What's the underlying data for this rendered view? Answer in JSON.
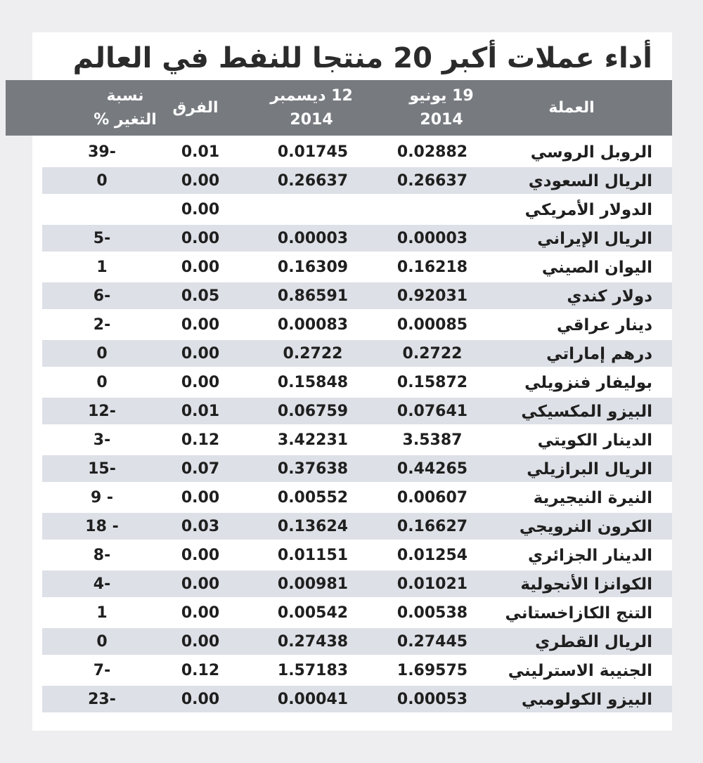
{
  "title": "أداء عملات أكبر 20 منتجا للنفط في العالم",
  "header": {
    "currency": "العملة",
    "june_line1": "19 يونيو",
    "june_line2": "2014",
    "dec_line1": "12 ديسمبر",
    "dec_line2": "2014",
    "diff": "الفرق",
    "pct_line1": "نسبة",
    "pct_line2": "التغير %"
  },
  "rows": [
    {
      "name": "الروبل الروسي",
      "june": "0.02882",
      "dec": "0.01745",
      "diff": "0.01",
      "pct": "39-"
    },
    {
      "name": "الريال السعودي",
      "june": "0.26637",
      "dec": "0.26637",
      "diff": "0.00",
      "pct": "0"
    },
    {
      "name": "الدولار الأمريكي",
      "june": "",
      "dec": "",
      "diff": "0.00",
      "pct": ""
    },
    {
      "name": "الريال الإيراني",
      "june": "0.00003",
      "dec": "0.00003",
      "diff": "0.00",
      "pct": "5-"
    },
    {
      "name": "اليوان الصيني",
      "june": "0.16218",
      "dec": "0.16309",
      "diff": "0.00",
      "pct": "1"
    },
    {
      "name": "دولار كندي",
      "june": "0.92031",
      "dec": "0.86591",
      "diff": "0.05",
      "pct": "6-"
    },
    {
      "name": "دينار عراقي",
      "june": "0.00085",
      "dec": "0.00083",
      "diff": "0.00",
      "pct": "2-"
    },
    {
      "name": "درهم إماراتي",
      "june": "0.2722",
      "dec": "0.2722",
      "diff": "0.00",
      "pct": "0"
    },
    {
      "name": "بوليفار فنزويلي",
      "june": "0.15872",
      "dec": "0.15848",
      "diff": "0.00",
      "pct": "0"
    },
    {
      "name": "البيزو المكسيكي",
      "june": "0.07641",
      "dec": "0.06759",
      "diff": "0.01",
      "pct": "12-"
    },
    {
      "name": "الدينار الكويتي",
      "june": "3.5387",
      "dec": "3.42231",
      "diff": "0.12",
      "pct": "3-"
    },
    {
      "name": "الريال البرازيلي",
      "june": "0.44265",
      "dec": "0.37638",
      "diff": "0.07",
      "pct": "15-"
    },
    {
      "name": "النيرة النيجيرية",
      "june": "0.00607",
      "dec": "0.00552",
      "diff": "0.00",
      "pct": "9 -"
    },
    {
      "name": "الكرون النرويجي",
      "june": "0.16627",
      "dec": "0.13624",
      "diff": "0.03",
      "pct": "18 -"
    },
    {
      "name": "الدينار الجزائري",
      "june": "0.01254",
      "dec": "0.01151",
      "diff": "0.00",
      "pct": "8-"
    },
    {
      "name": "الكوانزا الأنجولية",
      "june": "0.01021",
      "dec": "0.00981",
      "diff": "0.00",
      "pct": "4-"
    },
    {
      "name": "التنج الكازاخستاني",
      "june": "0.00538",
      "dec": "0.00542",
      "diff": "0.00",
      "pct": "1"
    },
    {
      "name": "الريال القطري",
      "june": "0.27445",
      "dec": "0.27438",
      "diff": "0.00",
      "pct": "0"
    },
    {
      "name": "الجنيبة الاسترليني",
      "june": "1.69575",
      "dec": "1.57183",
      "diff": "0.12",
      "pct": "7-"
    },
    {
      "name": "البيزو الكولومبي",
      "june": "0.00053",
      "dec": "0.00041",
      "diff": "0.00",
      "pct": "23-"
    }
  ],
  "colors": {
    "header_bg": "#777b80",
    "row_shade": "#dde0e6",
    "page_bg": "#eeeef0"
  }
}
